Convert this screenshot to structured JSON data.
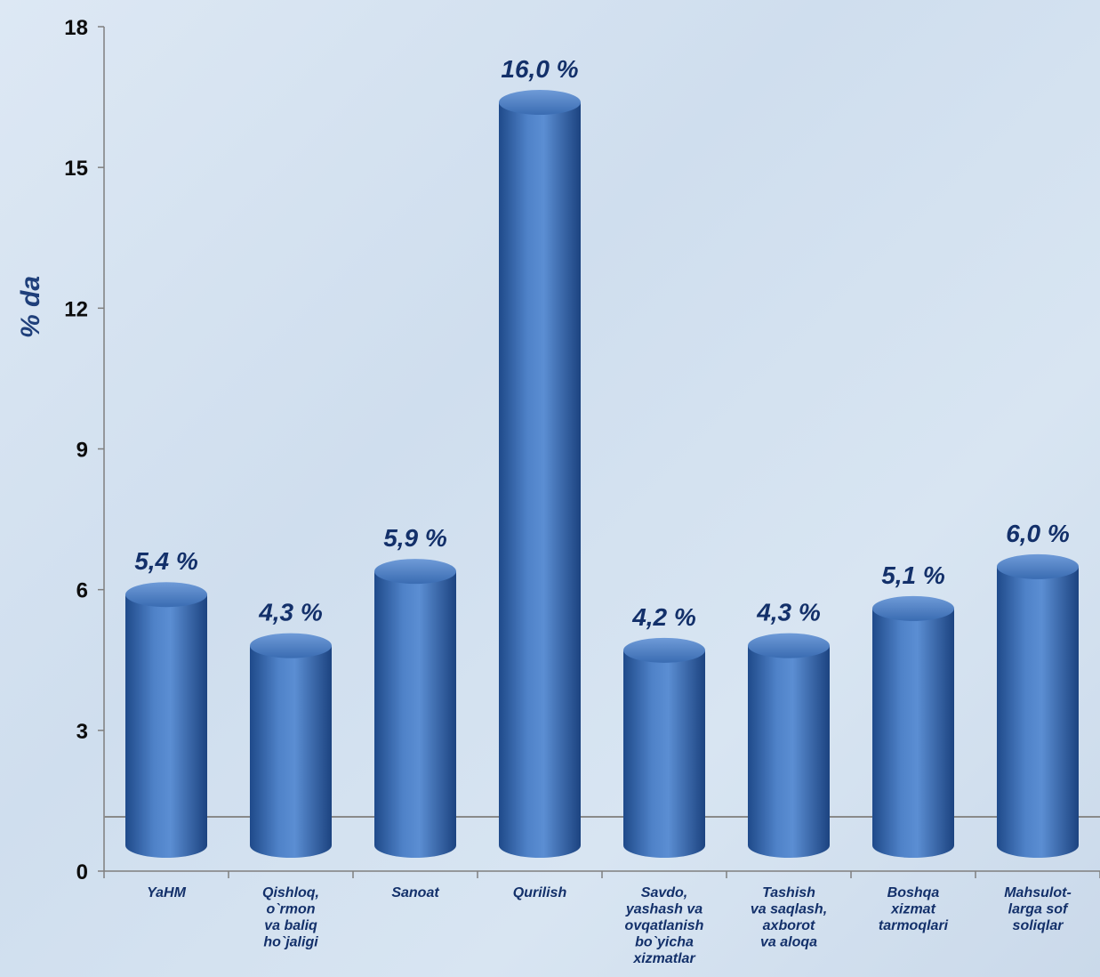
{
  "chart_data": {
    "type": "bar",
    "title": "",
    "xlabel": "",
    "ylabel": "% da",
    "ylim": [
      0,
      18
    ],
    "yticks": [
      "0",
      "3",
      "6",
      "9",
      "12",
      "15",
      "18"
    ],
    "grid": false,
    "categories": [
      [
        "YaHM"
      ],
      [
        "Qishloq,",
        "o`rmon",
        "va baliq",
        "ho`jaligi"
      ],
      [
        "Sanoat"
      ],
      [
        "Qurilish"
      ],
      [
        "Savdo,",
        "yashash va",
        "ovqatlanish",
        "bo`yicha",
        "xizmatlar"
      ],
      [
        "Tashish",
        "va saqlash,",
        "axborot",
        "va aloqa"
      ],
      [
        "Boshqa",
        "xizmat",
        "tarmoqlari"
      ],
      [
        "Mahsulot-",
        "larga sof",
        "soliqlar"
      ]
    ],
    "values": [
      5.4,
      4.3,
      5.9,
      16.0,
      4.2,
      4.3,
      5.1,
      6.0
    ],
    "data_labels": [
      "5,4 %",
      "4,3 %",
      "5,9 %",
      "16,0 %",
      "4,2 %",
      "4,3 %",
      "5,1 %",
      "6,0 %"
    ],
    "bar_color": "#3f72b8"
  }
}
